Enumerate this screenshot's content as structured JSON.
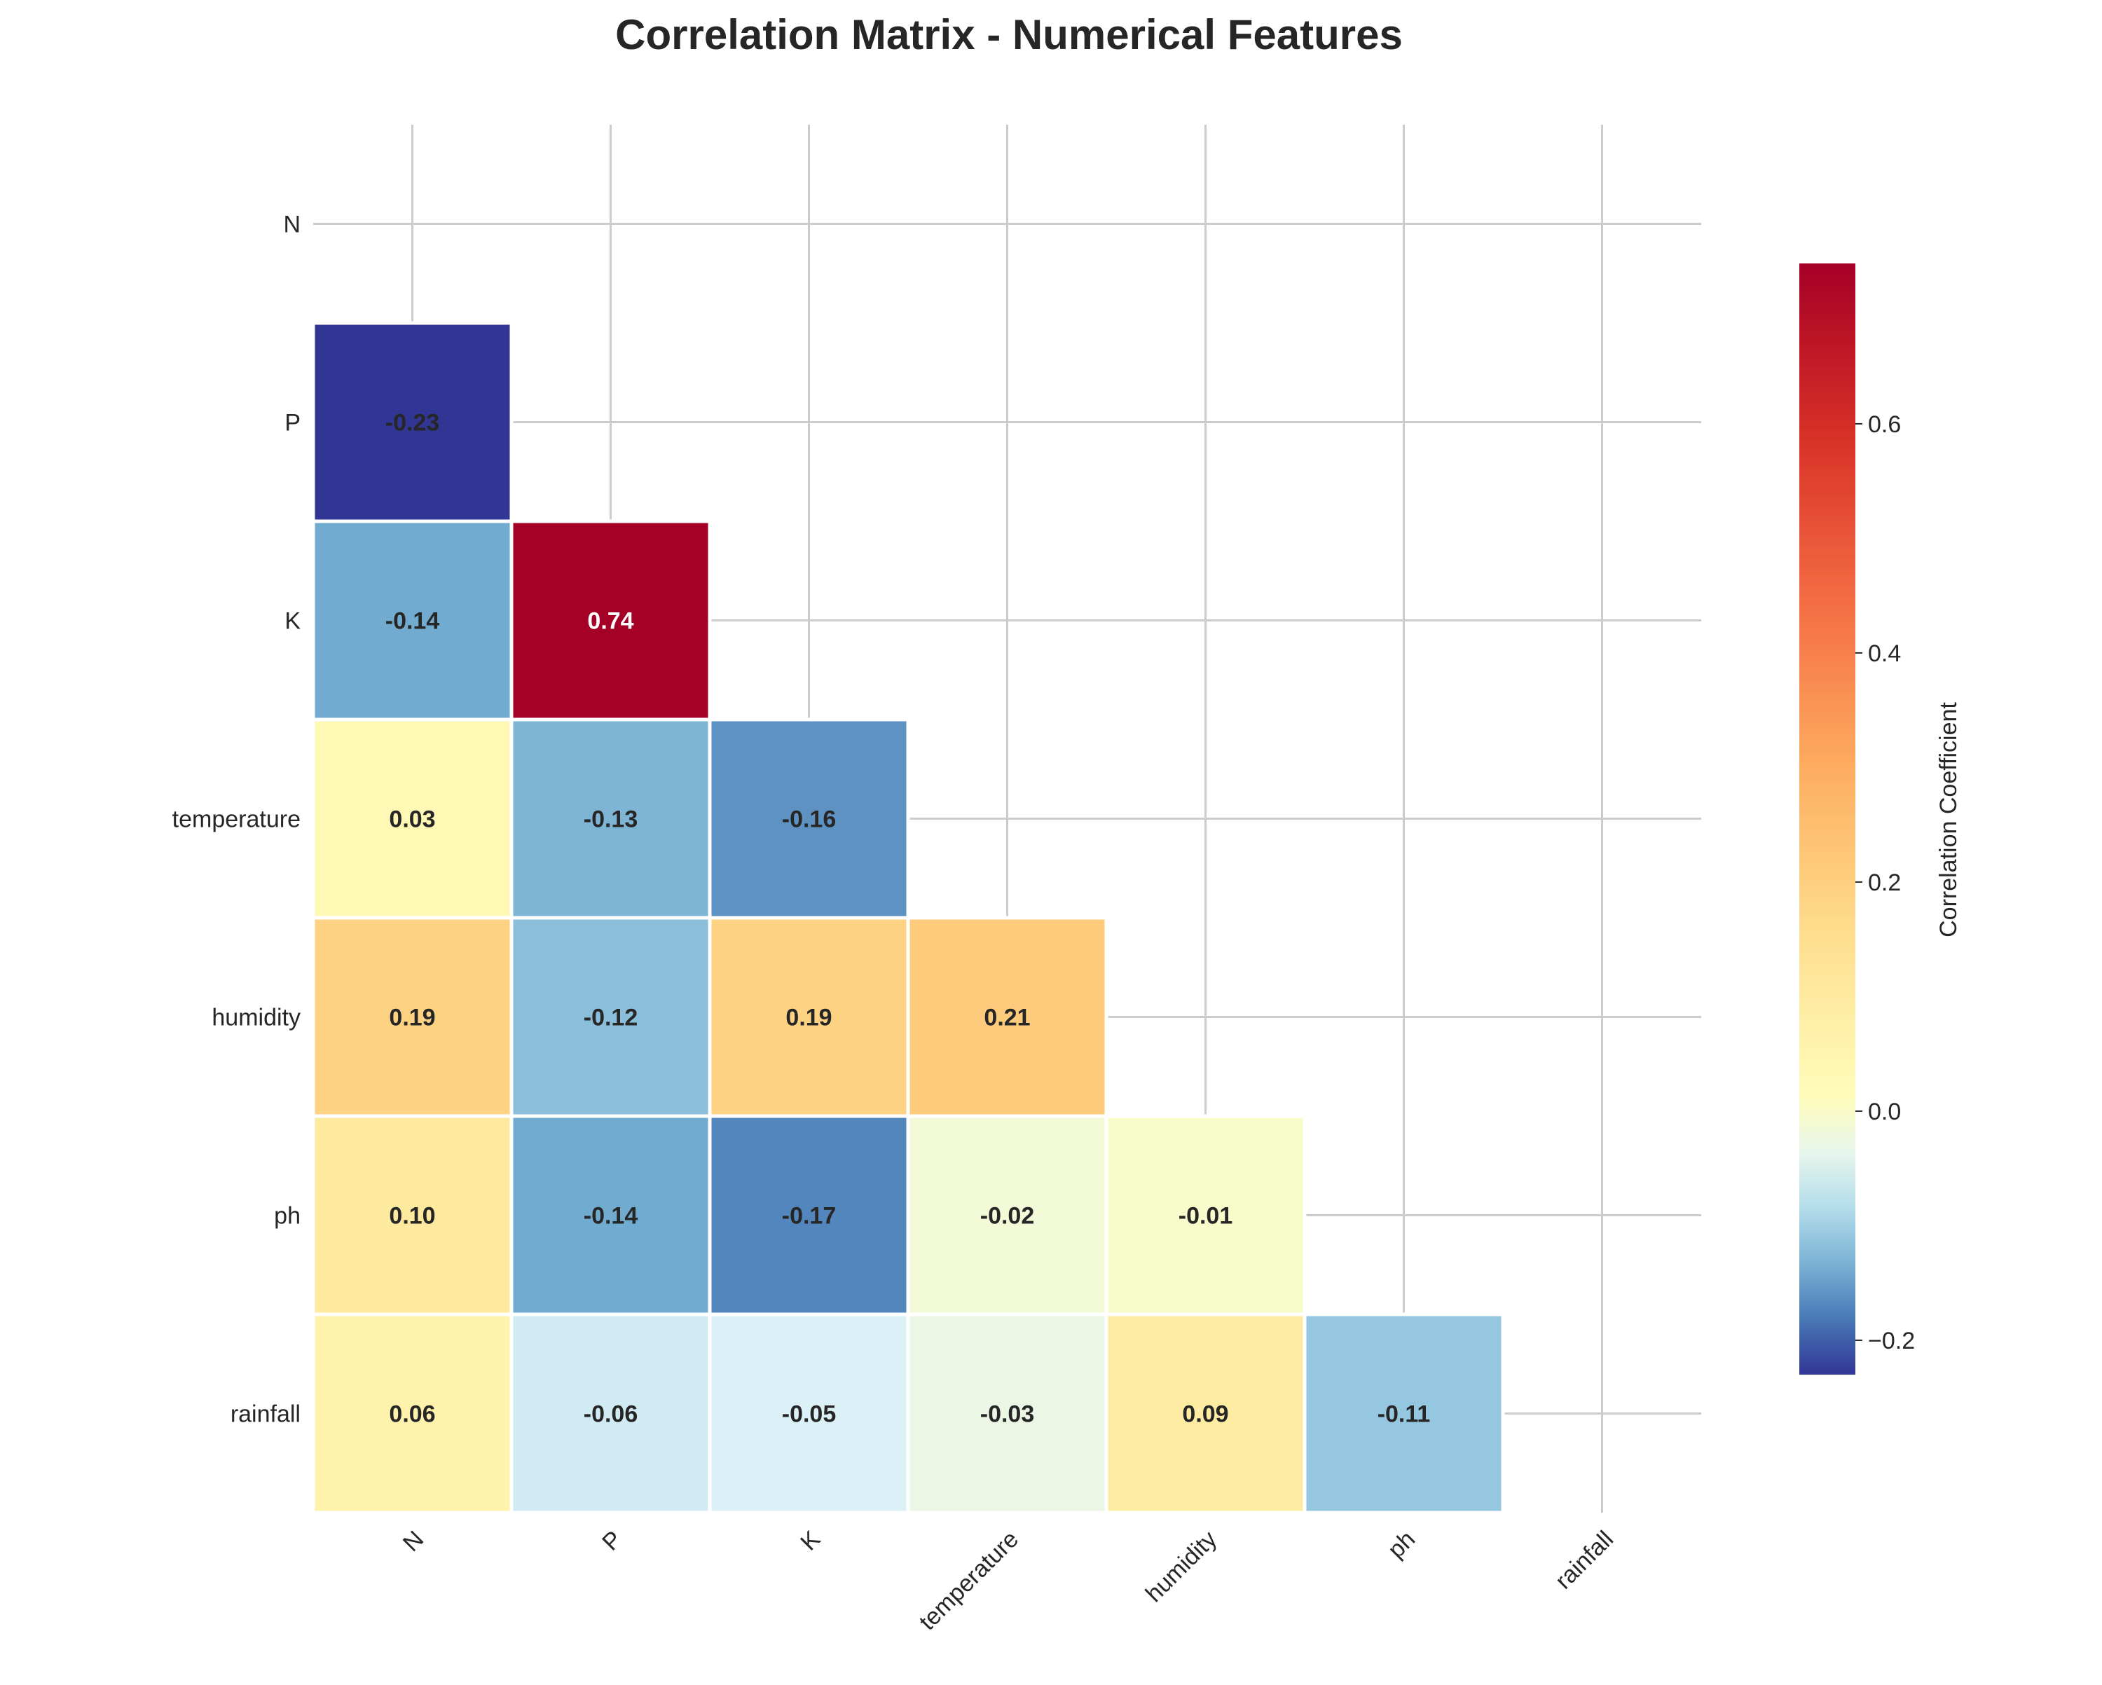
{
  "chart_data": {
    "type": "heatmap",
    "title": "Correlation Matrix - Numerical Features",
    "variables": [
      "N",
      "P",
      "K",
      "temperature",
      "humidity",
      "ph",
      "rainfall"
    ],
    "mask": "upper triangle including diagonal (lower triangle shown)",
    "cells": [
      {
        "row": "P",
        "col": "N",
        "value": -0.23
      },
      {
        "row": "K",
        "col": "N",
        "value": -0.14
      },
      {
        "row": "K",
        "col": "P",
        "value": 0.74
      },
      {
        "row": "temperature",
        "col": "N",
        "value": 0.03
      },
      {
        "row": "temperature",
        "col": "P",
        "value": -0.13
      },
      {
        "row": "temperature",
        "col": "K",
        "value": -0.16
      },
      {
        "row": "humidity",
        "col": "N",
        "value": 0.19
      },
      {
        "row": "humidity",
        "col": "P",
        "value": -0.12
      },
      {
        "row": "humidity",
        "col": "K",
        "value": 0.19
      },
      {
        "row": "humidity",
        "col": "temperature",
        "value": 0.21
      },
      {
        "row": "ph",
        "col": "N",
        "value": 0.1
      },
      {
        "row": "ph",
        "col": "P",
        "value": -0.14
      },
      {
        "row": "ph",
        "col": "K",
        "value": -0.17
      },
      {
        "row": "ph",
        "col": "temperature",
        "value": -0.02
      },
      {
        "row": "ph",
        "col": "humidity",
        "value": -0.01
      },
      {
        "row": "rainfall",
        "col": "N",
        "value": 0.06
      },
      {
        "row": "rainfall",
        "col": "P",
        "value": -0.06
      },
      {
        "row": "rainfall",
        "col": "K",
        "value": -0.05
      },
      {
        "row": "rainfall",
        "col": "temperature",
        "value": -0.03
      },
      {
        "row": "rainfall",
        "col": "humidity",
        "value": 0.09
      },
      {
        "row": "rainfall",
        "col": "ph",
        "value": -0.11
      }
    ],
    "colorbar": {
      "label": "Correlation Coefficient",
      "colormap": "RdYlBu_r",
      "range": [
        -0.23,
        0.74
      ],
      "ticks": [
        -0.2,
        0.0,
        0.2,
        0.4,
        0.6
      ],
      "tick_labels": [
        "−0.2",
        "0.0",
        "0.2",
        "0.4",
        "0.6"
      ]
    },
    "grid": true
  }
}
